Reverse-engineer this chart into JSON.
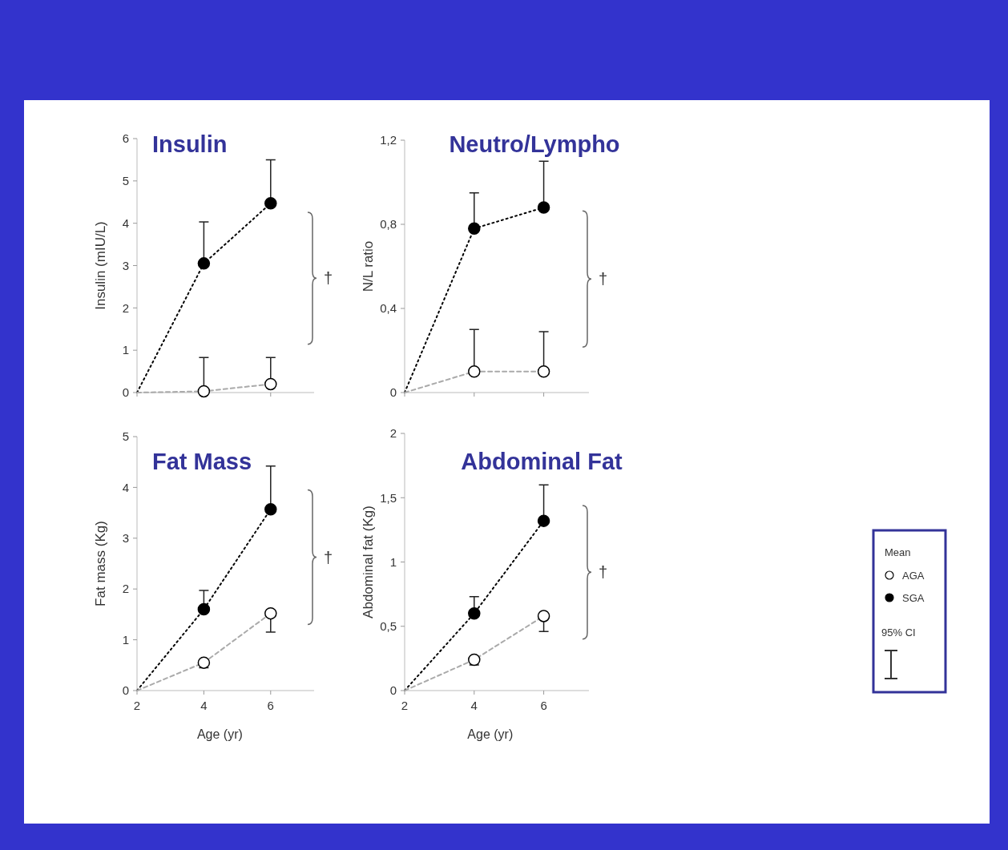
{
  "chart_data": [
    {
      "type": "line",
      "title": "Insulin",
      "ylabel": "Insulin (mIU/L)",
      "x": [
        2,
        4,
        6
      ],
      "xlim": [
        2,
        7.3
      ],
      "xticks": [
        2,
        4,
        6
      ],
      "ylim": [
        0,
        6
      ],
      "yticks": [
        0,
        1,
        2,
        3,
        4,
        5,
        6
      ],
      "tick_labels": "y",
      "marker": "circle",
      "grid": false,
      "legend": false,
      "annotations": [
        "†"
      ],
      "series": [
        {
          "color": "#000000",
          "line_style": "dotted",
          "values": [
            0,
            3.05,
            4.47
          ],
          "errors": [
            null,
            [
              3.05,
              4.03
            ],
            [
              4.47,
              5.5
            ]
          ]
        },
        {
          "color": "#aaaaaa",
          "line_style": "dashed",
          "values": [
            0,
            0.03,
            0.2
          ],
          "errors": [
            null,
            [
              0.03,
              0.83
            ],
            [
              0.2,
              0.83
            ]
          ]
        }
      ]
    },
    {
      "type": "line",
      "title": "Neutro/Lympho",
      "ylabel": "N/L ratio",
      "x": [
        2,
        4,
        6
      ],
      "xlim": [
        2,
        7.3
      ],
      "xticks": [
        2,
        4,
        6
      ],
      "ylim": [
        0,
        1.2
      ],
      "yticks": [
        0,
        {
          "value": 0.4,
          "label": "0,4"
        },
        {
          "value": 0.8,
          "label": "0,8"
        },
        {
          "value": 1.2,
          "label": "1,2"
        }
      ],
      "tick_labels": "y",
      "marker": "circle",
      "grid": false,
      "legend": false,
      "annotations": [
        "†"
      ],
      "series": [
        {
          "color": "#000000",
          "line_style": "dotted",
          "values": [
            0,
            0.78,
            0.88
          ],
          "errors": [
            null,
            [
              0.78,
              0.95
            ],
            [
              0.88,
              1.1
            ]
          ]
        },
        {
          "color": "#aaaaaa",
          "line_style": "dashed",
          "values": [
            0,
            0.1,
            0.1
          ],
          "errors": [
            null,
            [
              0.1,
              0.3
            ],
            [
              0.1,
              0.29
            ]
          ]
        }
      ]
    },
    {
      "type": "line",
      "title": "Fat Mass",
      "xlabel": "Age (yr)",
      "ylabel": "Fat mass (Kg)",
      "x": [
        2,
        4,
        6
      ],
      "xlim": [
        2,
        7.3
      ],
      "xticks": [
        2,
        4,
        6
      ],
      "ylim": [
        0,
        5
      ],
      "yticks": [
        0,
        1,
        2,
        3,
        4,
        5
      ],
      "marker": "circle",
      "grid": false,
      "legend": false,
      "annotations": [
        "†"
      ],
      "series": [
        {
          "color": "#000000",
          "line_style": "dotted",
          "values": [
            0,
            1.6,
            3.57
          ],
          "errors": [
            null,
            [
              1.6,
              1.97
            ],
            [
              3.57,
              4.42
            ]
          ]
        },
        {
          "color": "#aaaaaa",
          "line_style": "dashed",
          "values": [
            0,
            0.55,
            1.52
          ],
          "errors": [
            null,
            [
              0.45,
              0.55
            ],
            [
              1.15,
              1.52
            ]
          ]
        }
      ]
    },
    {
      "type": "line",
      "title": "Abdominal Fat",
      "xlabel": "Age (yr)",
      "ylabel": "Abdominal fat (Kg)",
      "legend_title": "Mean",
      "x": [
        2,
        4,
        6
      ],
      "xlim": [
        2,
        7.3
      ],
      "xticks": [
        2,
        4,
        6
      ],
      "ylim": [
        0,
        2
      ],
      "yticks": [
        0,
        {
          "value": 0.5,
          "label": "0,5"
        },
        1,
        {
          "value": 1.5,
          "label": "1,5"
        },
        2
      ],
      "marker": "circle",
      "grid": false,
      "legend": "right",
      "annotations": [
        "†",
        "95% CI"
      ],
      "series": [
        {
          "name": "SGA",
          "color": "#000000",
          "line_style": "dotted",
          "values": [
            0,
            0.6,
            1.32
          ],
          "errors": [
            null,
            [
              0.6,
              0.73
            ],
            [
              1.32,
              1.6
            ]
          ]
        },
        {
          "name": "AGA",
          "color": "#aaaaaa",
          "line_style": "dashed",
          "values": [
            0,
            0.24,
            0.58
          ],
          "errors": [
            null,
            [
              0.2,
              0.24
            ],
            [
              0.46,
              0.58
            ]
          ]
        }
      ]
    }
  ]
}
